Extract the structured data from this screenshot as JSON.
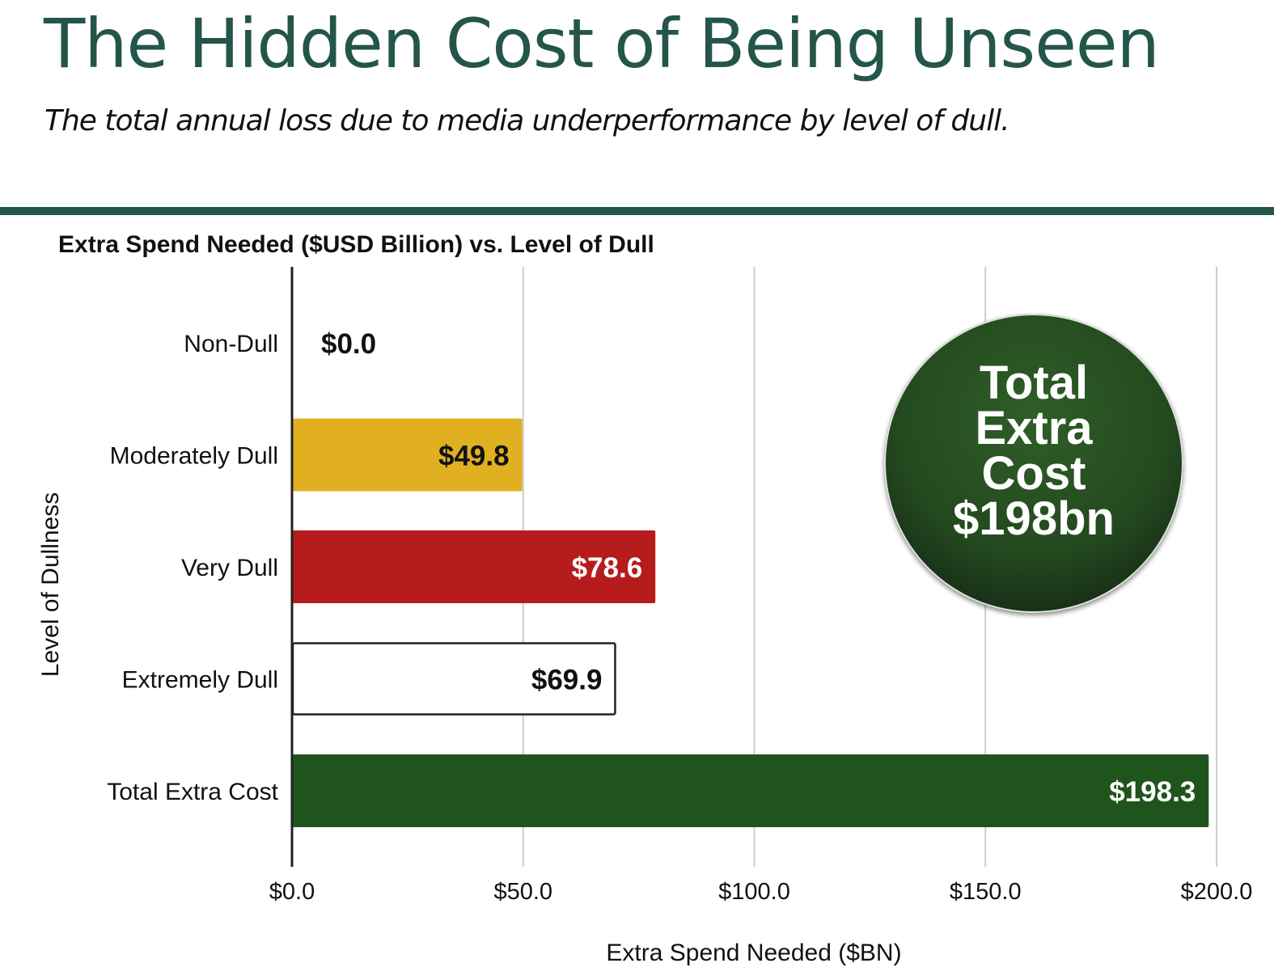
{
  "header": {
    "title": "The Hidden Cost of Being Unseen",
    "subtitle": "The total annual loss due to media underperformance by level of dull."
  },
  "callout": {
    "lines": [
      "Total",
      "Extra",
      "Cost",
      "$198bn"
    ],
    "color": "#24491f"
  },
  "chart_data": {
    "type": "bar",
    "orientation": "horizontal",
    "title": "Extra Spend Needed ($USD Billion) vs. Level of Dull",
    "xlabel": "Extra Spend Needed ($BN)",
    "ylabel": "Level of Dullness",
    "categories": [
      "Non-Dull",
      "Moderately Dull",
      "Very Dull",
      "Extremely Dull",
      "Total Extra Cost"
    ],
    "values": [
      0.0,
      49.8,
      78.6,
      69.9,
      198.3
    ],
    "data_labels": [
      "$0.0",
      "$49.8",
      "$78.6",
      "$69.9",
      "$198.3"
    ],
    "bar_colors": [
      "#ffffff",
      "#e1b020",
      "#b71c1c",
      "#ffffff",
      "#20541d"
    ],
    "bar_outlines": [
      false,
      false,
      false,
      true,
      false
    ],
    "label_colors": [
      "#111111",
      "#111111",
      "#ffffff",
      "#111111",
      "#ffffff"
    ],
    "xlim": [
      0,
      200
    ],
    "xticks": [
      0,
      50,
      100,
      150,
      200
    ],
    "xtick_labels": [
      "$0.0",
      "$50.0",
      "$100.0",
      "$150.0",
      "$200.0"
    ],
    "grid": "vertical",
    "legend": "none"
  }
}
